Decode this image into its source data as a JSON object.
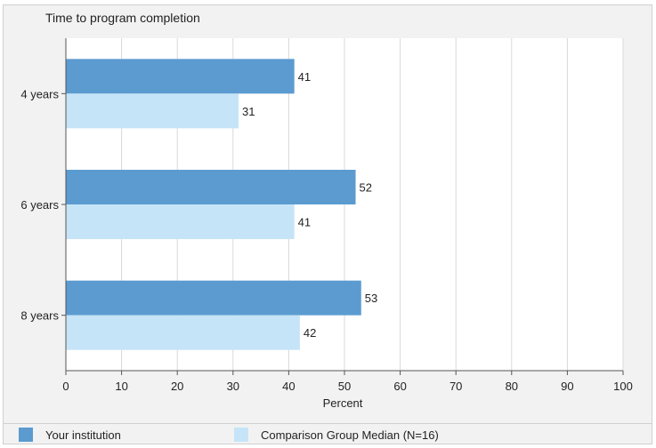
{
  "chart_data": {
    "type": "bar",
    "orientation": "horizontal",
    "title": "Time to program completion",
    "xlabel": "Percent",
    "ylabel": "",
    "xlim": [
      0,
      100
    ],
    "x_ticks": [
      0,
      10,
      20,
      30,
      40,
      50,
      60,
      70,
      80,
      90,
      100
    ],
    "categories": [
      "4 years",
      "6 years",
      "8 years"
    ],
    "series": [
      {
        "name": "Your institution",
        "values": [
          41,
          52,
          53
        ],
        "color": "#5b9bd0"
      },
      {
        "name": "Comparison Group Median (N=16)",
        "values": [
          31,
          41,
          42
        ],
        "color": "#c6e4f7"
      }
    ],
    "grid": true,
    "legend_position": "bottom"
  }
}
